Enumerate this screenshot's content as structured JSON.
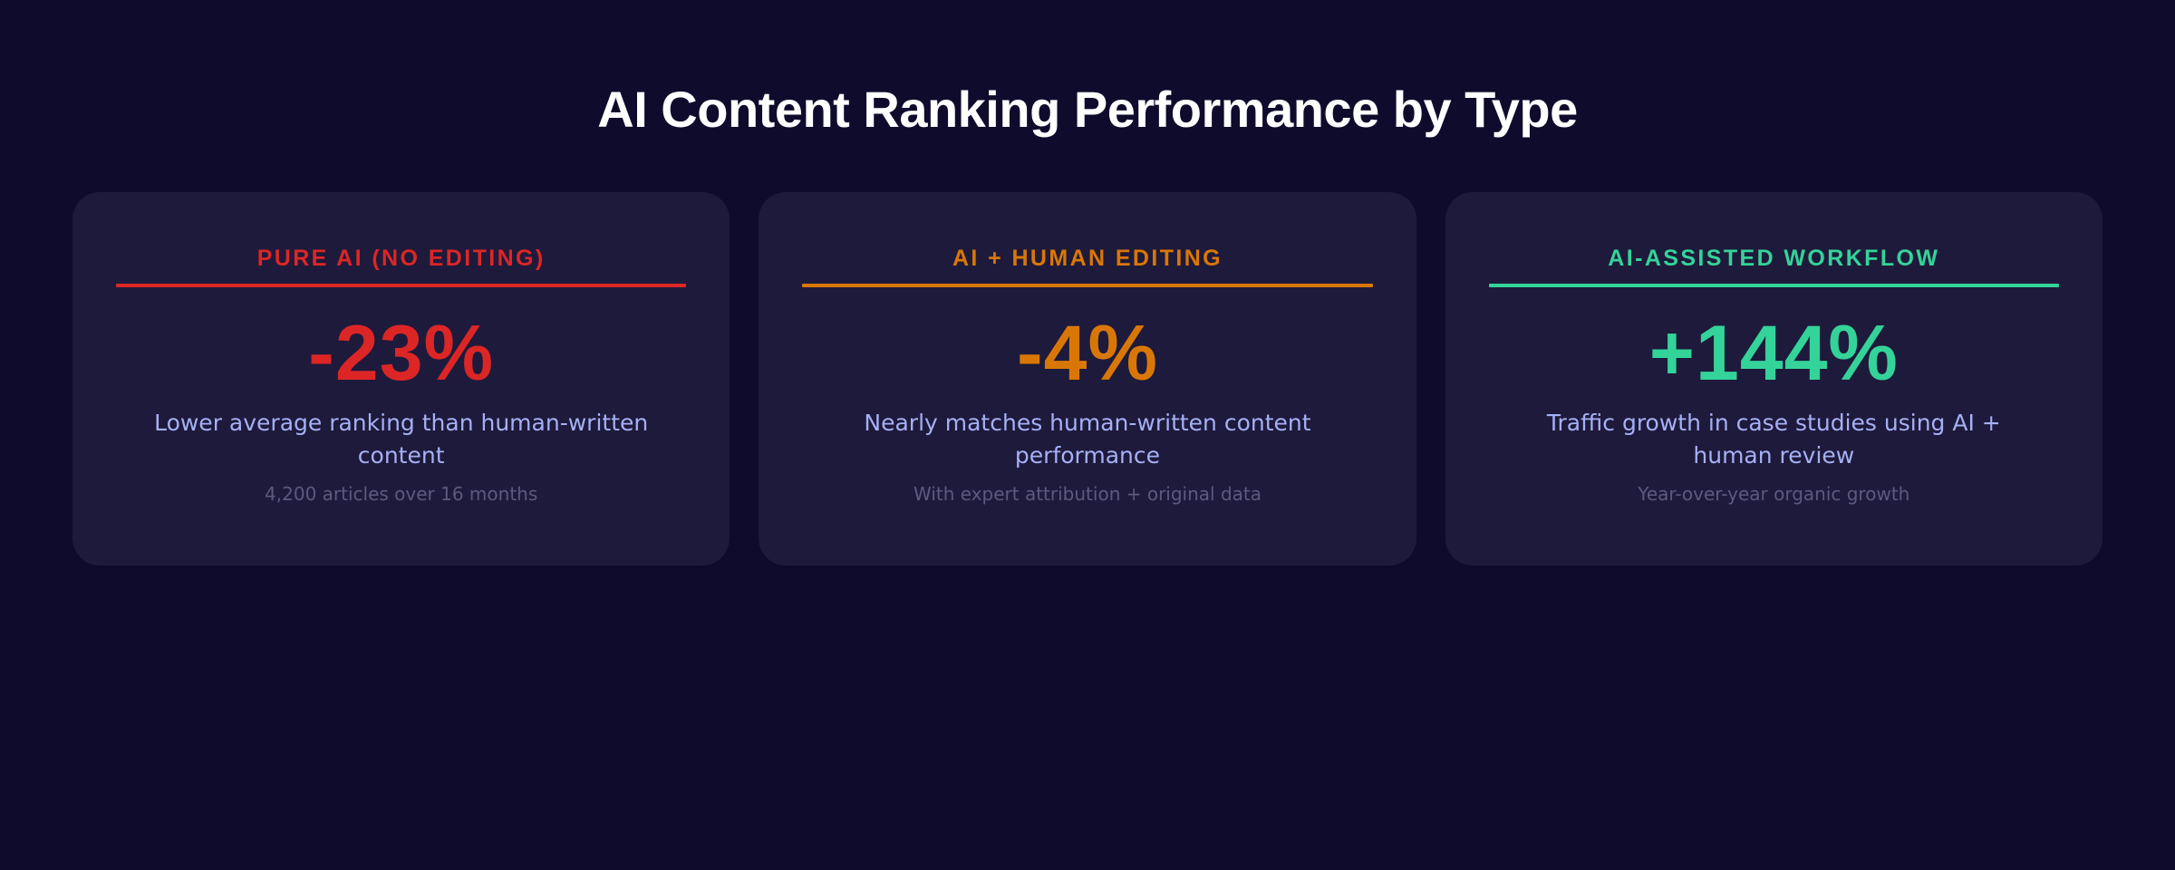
{
  "page": {
    "title": "AI Content Ranking Performance by Type",
    "background_color": "#0f0b2d",
    "card_background_color": "#1e1a3b"
  },
  "cards": [
    {
      "label": "PURE AI (NO EDITING)",
      "value": "-23%",
      "description": "Lower average ranking than human-written content",
      "note": "4,200 articles over 16 months",
      "accent_color": "#dc2626"
    },
    {
      "label": "AI + HUMAN EDITING",
      "value": "-4%",
      "description": "Nearly matches human-written content performance",
      "note": "With expert attribution + original data",
      "accent_color": "#d97706"
    },
    {
      "label": "AI-ASSISTED WORKFLOW",
      "value": "+144%",
      "description": "Traffic growth in case studies using AI + human review",
      "note": "Year-over-year organic growth",
      "accent_color": "#34d399"
    }
  ]
}
